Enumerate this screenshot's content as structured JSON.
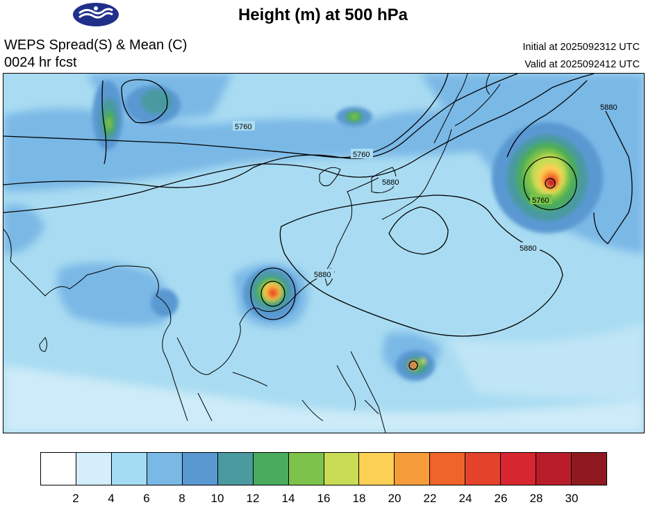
{
  "header": {
    "title": "Height (m) at 500 hPa",
    "subtitle_line1": "WEPS Spread(S) & Mean (C)",
    "subtitle_line2": "0024 hr fcst",
    "initial_time": "Initial at 2025092312 UTC",
    "valid_time": "Valid at 2025092412 UTC"
  },
  "map": {
    "contour_labels": [
      "5760",
      "5760",
      "5760",
      "5880",
      "5880",
      "5880",
      "5880"
    ],
    "ocean_color": "#a9dcf2",
    "land_color": "#7eb9e6"
  },
  "colorbar": {
    "colors": [
      "#ffffff",
      "#d4eefa",
      "#a4dcf4",
      "#7ab8e6",
      "#5a98d2",
      "#4a9aa0",
      "#4bab5c",
      "#7cc24a",
      "#c8dc55",
      "#fbd054",
      "#f79c3a",
      "#ef6428",
      "#e3432a",
      "#d62630",
      "#b91d2a",
      "#8e1a1f"
    ],
    "tick_labels": [
      "2",
      "4",
      "6",
      "8",
      "10",
      "12",
      "14",
      "16",
      "18",
      "20",
      "22",
      "24",
      "26",
      "28",
      "30"
    ]
  }
}
